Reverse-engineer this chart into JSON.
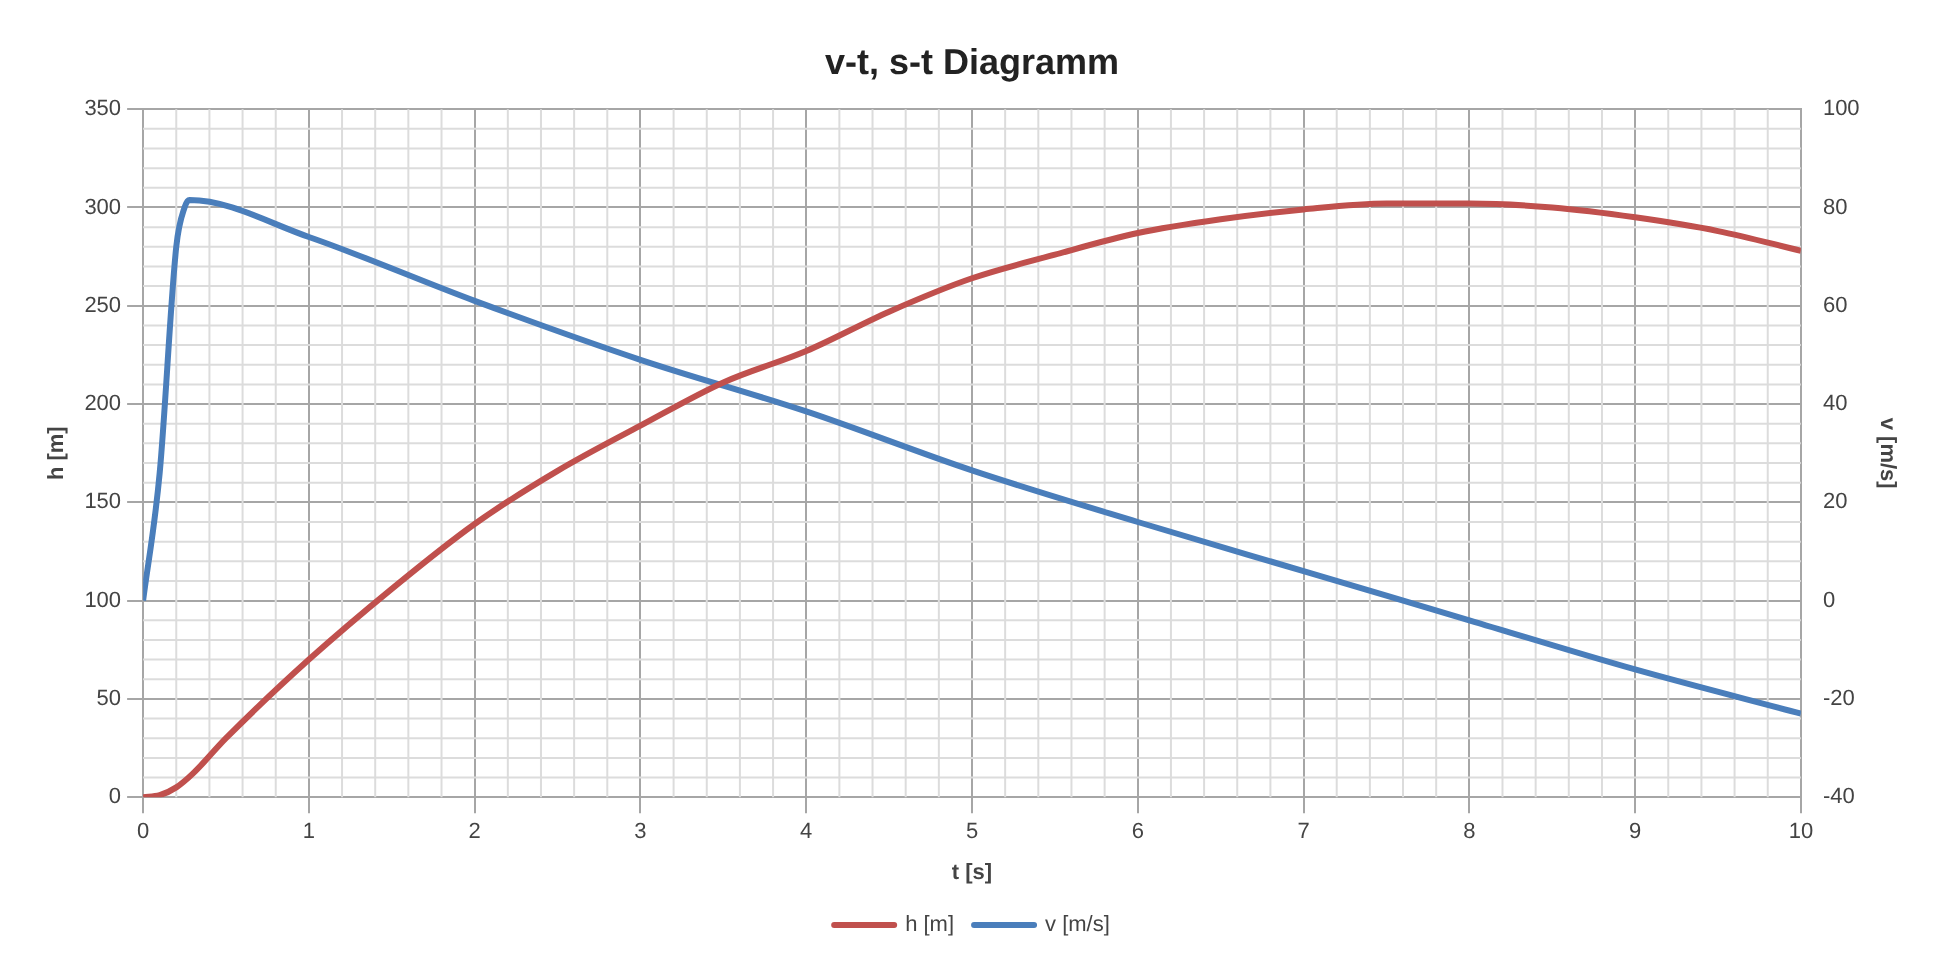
{
  "chart_data": {
    "type": "line",
    "title": "v-t, s-t Diagramm",
    "xlabel": "t [s]",
    "ylabel": "h [m]",
    "y2label": "v [m/s]",
    "xlim": [
      0,
      10
    ],
    "xticks": [
      0,
      1,
      2,
      3,
      4,
      5,
      6,
      7,
      8,
      9,
      10
    ],
    "ylim": [
      0,
      350
    ],
    "yticks": [
      0,
      50,
      100,
      150,
      200,
      250,
      300,
      350
    ],
    "y2lim": [
      -40,
      100
    ],
    "y2ticks": [
      -40,
      -20,
      0,
      20,
      40,
      60,
      80,
      100
    ],
    "grid": true,
    "legend": "bottom",
    "marker": "none",
    "line_style": "solid",
    "series": [
      {
        "name": "h [m]",
        "color": "#c0504d",
        "x": [
          0,
          0.1,
          0.2,
          0.3,
          0.5,
          1,
          1.5,
          2,
          2.5,
          3,
          3.5,
          4,
          4.5,
          5,
          5.5,
          6,
          6.5,
          7,
          7.5,
          8,
          8.5,
          9,
          9.5,
          10
        ],
        "values": [
          0,
          1,
          5,
          12,
          30,
          70,
          106,
          139,
          166,
          189,
          211,
          227,
          247,
          264,
          276,
          287,
          294,
          299,
          302,
          302,
          300,
          295,
          288,
          278
        ]
      },
      {
        "name": "v [m/s]",
        "color": "#4a7ebb",
        "axis": "y2",
        "x": [
          0,
          0.1,
          0.2,
          0.25,
          0.28,
          1,
          2,
          3,
          4,
          5,
          6,
          7,
          8,
          9,
          10
        ],
        "values": [
          0,
          26,
          72,
          80,
          81.5,
          74,
          61,
          49,
          38.5,
          26.5,
          16,
          6,
          -4,
          -14,
          -23
        ]
      }
    ]
  }
}
